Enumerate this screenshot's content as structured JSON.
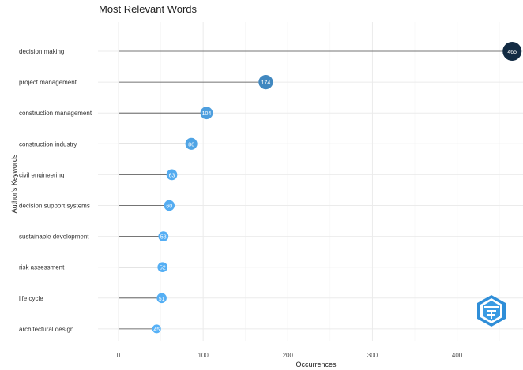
{
  "chart_data": {
    "type": "scatter",
    "style": "lollipop",
    "title": "Most Relevant Words",
    "xlabel": "Occurrences",
    "ylabel": "Author's Keywords",
    "xlim": [
      0,
      476
    ],
    "xticks": [
      0,
      100,
      200,
      300,
      400
    ],
    "grid": true,
    "categories": [
      "decision making",
      "project management",
      "construction management",
      "construction industry",
      "civil engineering",
      "decision support systems",
      "sustainable development",
      "risk assessment",
      "life cycle",
      "architectural design"
    ],
    "values": [
      465,
      174,
      104,
      86,
      63,
      60,
      53,
      52,
      51,
      45
    ],
    "colors": {
      "low": "#56b1f7",
      "high": "#132b43",
      "stem": "#4d4d4d",
      "grid": "#ebebeb"
    }
  },
  "watermark": {
    "icon": "hexagon-logo-icon"
  }
}
